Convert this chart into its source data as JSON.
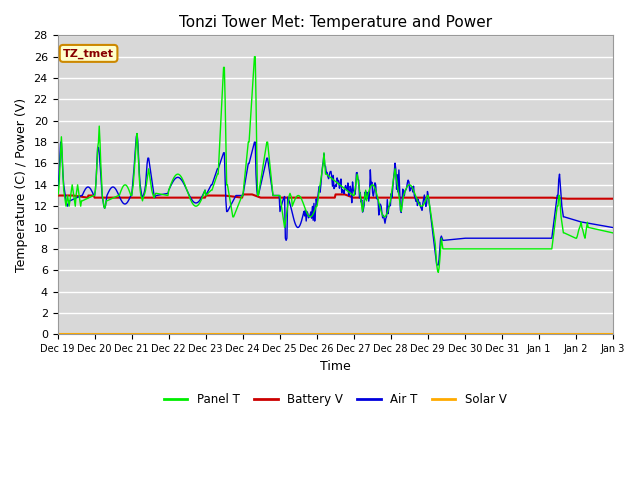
{
  "title": "Tonzi Tower Met: Temperature and Power",
  "ylabel": "Temperature (C) / Power (V)",
  "xlabel": "Time",
  "ylim": [
    0,
    28
  ],
  "yticks": [
    0,
    2,
    4,
    6,
    8,
    10,
    12,
    14,
    16,
    18,
    20,
    22,
    24,
    26,
    28
  ],
  "bg_color": "#d8d8d8",
  "grid_color": "#ffffff",
  "annotation_label": "TZ_tmet",
  "annotation_bg": "#ffffcc",
  "annotation_border": "#cc8800",
  "annotation_text_color": "#880000",
  "legend_entries": [
    "Panel T",
    "Battery V",
    "Air T",
    "Solar V"
  ],
  "legend_colors": [
    "#00ee00",
    "#cc0000",
    "#0000dd",
    "#ffaa00"
  ],
  "x_tick_labels": [
    "Dec 19",
    "Dec 20",
    "Dec 21",
    "Dec 22",
    "Dec 23",
    "Dec 24",
    "Dec 25",
    "Dec 26",
    "Dec 27",
    "Dec 28",
    "Dec 29",
    "Dec 30",
    "Dec 31",
    "Jan 1",
    "Jan 2",
    "Jan 3"
  ],
  "panel_t_color": "#00ee00",
  "battery_v_color": "#cc0000",
  "air_t_color": "#0000dd",
  "solar_v_color": "#ffaa00",
  "title_fontsize": 11,
  "axis_fontsize": 9,
  "tick_fontsize": 8
}
